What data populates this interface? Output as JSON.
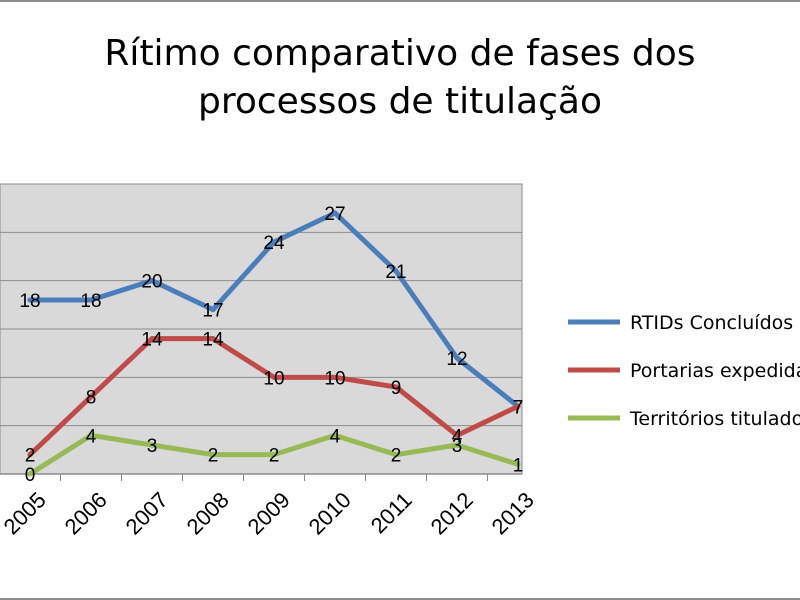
{
  "chart_data": {
    "type": "line",
    "title": [
      "Rítimo comparativo de fases dos",
      "processos de titulação"
    ],
    "categories": [
      "2005",
      "2006",
      "2007",
      "2008",
      "2009",
      "2010",
      "2011",
      "2012",
      "2013"
    ],
    "series": [
      {
        "name": "RTIDs Concluídos",
        "color": "#4a7ebb",
        "values": [
          18,
          18,
          20,
          17,
          24,
          27,
          21,
          12,
          7
        ]
      },
      {
        "name": "Portarias expedidas",
        "color": "#be4b48",
        "values": [
          2,
          8,
          14,
          14,
          10,
          10,
          9,
          4,
          7
        ]
      },
      {
        "name": "Territórios titulados",
        "color": "#98b954",
        "values": [
          0,
          4,
          3,
          2,
          2,
          4,
          2,
          3,
          1
        ]
      }
    ],
    "ylim": [
      0,
      30
    ],
    "grid": true,
    "legend_position": "right"
  }
}
